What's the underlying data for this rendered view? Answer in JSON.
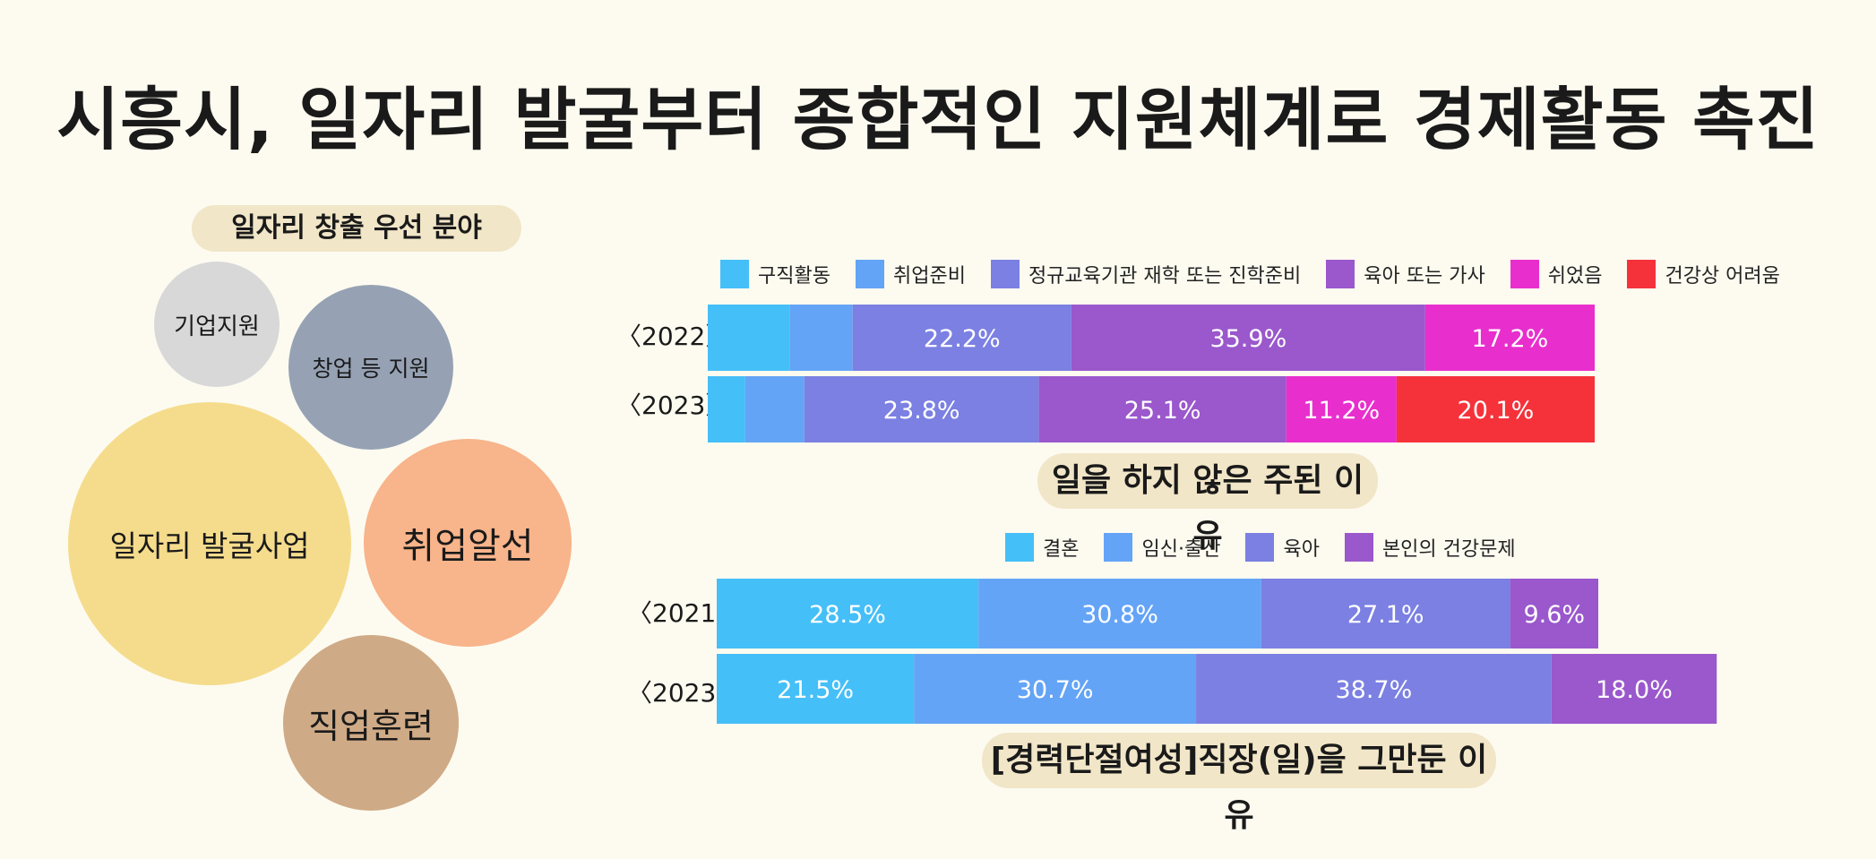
{
  "title": "시흥시, 일자리 발굴부터 종합적인 지원체계로 경제활동 촉진",
  "bubbles": {
    "title": "일자리 창출 우선 분야",
    "items": [
      {
        "label": "기업지원",
        "color": "#d8d8d8"
      },
      {
        "label": "창업 등 지원",
        "color": "#96a2b4"
      },
      {
        "label": "일자리 발굴사업",
        "color": "#f5dc8c"
      },
      {
        "label": "취업알선",
        "color": "#f8b48a"
      },
      {
        "label": "직업훈련",
        "color": "#cfaa86"
      }
    ]
  },
  "chart_data": [
    {
      "type": "bar",
      "orientation": "horizontal",
      "stacked": true,
      "title": "일을 하지 않은 주된 이유",
      "categories": [
        "〈2022〉",
        "〈2023〉"
      ],
      "legend_position": "top",
      "series": [
        {
          "name": "구직활동",
          "color": "#45bff8",
          "values": [
            8.3,
            3.8
          ]
        },
        {
          "name": "취업준비",
          "color": "#64a4f6",
          "values": [
            6.4,
            6.0
          ]
        },
        {
          "name": "정규교육기관 재학 또는 진학준비",
          "color": "#7b80e2",
          "values": [
            22.2,
            23.8
          ]
        },
        {
          "name": "육아 또는 가사",
          "color": "#9a58cc",
          "values": [
            35.9,
            25.1
          ]
        },
        {
          "name": "쉬었음",
          "color": "#e82fcd",
          "values": [
            17.2,
            11.2
          ]
        },
        {
          "name": "건강상 어려움",
          "color": "#f5323a",
          "values": [
            0,
            20.1
          ]
        }
      ],
      "data_labels": [
        [
          "",
          "",
          "22.2%",
          "35.9%",
          "17.2%",
          ""
        ],
        [
          "",
          "",
          "23.8%",
          "25.1%",
          "11.2%",
          "20.1%"
        ]
      ]
    },
    {
      "type": "bar",
      "orientation": "horizontal",
      "stacked": true,
      "title": "[경력단절여성]직장(일)을 그만둔 이유",
      "categories": [
        "〈2021〉",
        "〈2023〉"
      ],
      "legend_position": "top",
      "series": [
        {
          "name": "결혼",
          "color": "#45bff8",
          "values": [
            28.5,
            21.5
          ]
        },
        {
          "name": "임신·출산",
          "color": "#64a4f6",
          "values": [
            30.8,
            30.7
          ]
        },
        {
          "name": "육아",
          "color": "#7b80e2",
          "values": [
            27.1,
            38.7
          ]
        },
        {
          "name": "본인의 건강문제",
          "color": "#9a58cc",
          "values": [
            9.6,
            18.0
          ]
        }
      ],
      "data_labels": [
        [
          "28.5%",
          "30.8%",
          "27.1%",
          "9.6%"
        ],
        [
          "21.5%",
          "30.7%",
          "38.7%",
          "18.0%"
        ]
      ]
    }
  ]
}
